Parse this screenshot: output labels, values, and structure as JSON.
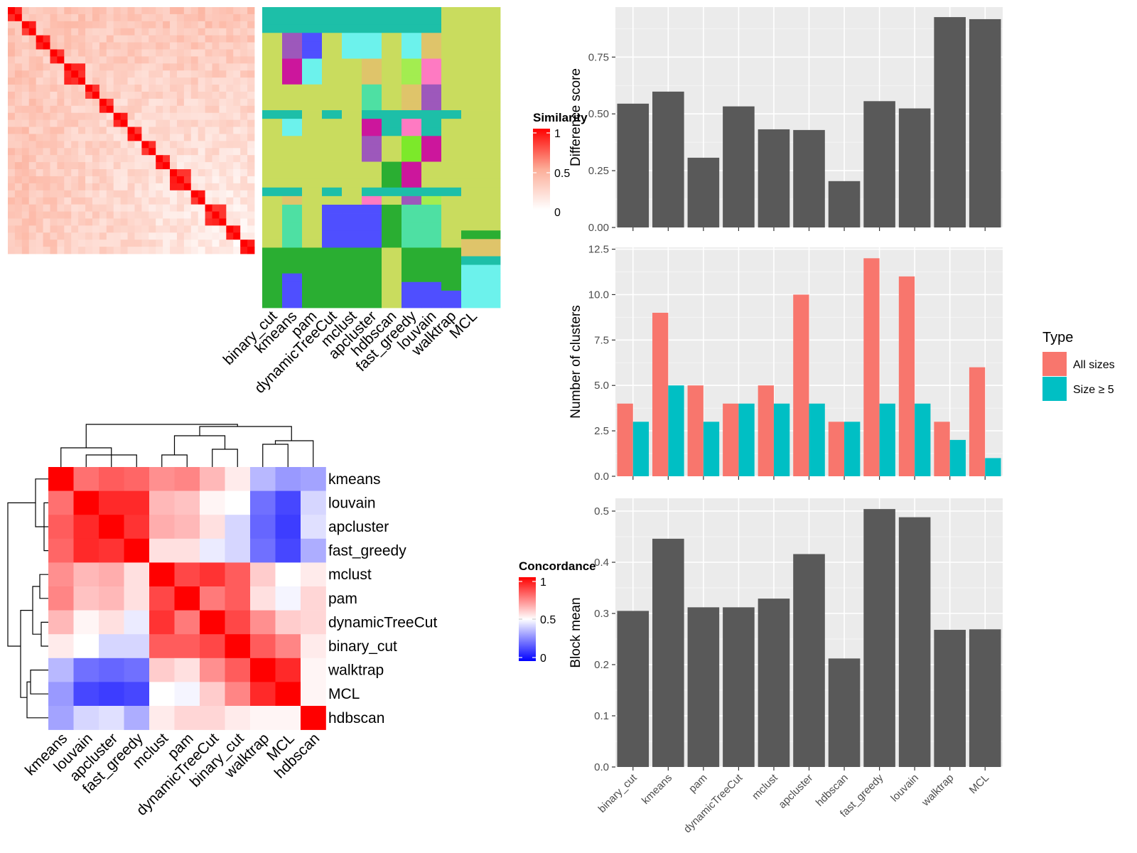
{
  "figure": {
    "heatmap_top": {
      "legend_title": "Similarity",
      "legend_ticks": [
        "1",
        "0.5",
        "0"
      ],
      "methods": [
        "binary_cut",
        "kmeans",
        "pam",
        "dynamicTreeCut",
        "mclust",
        "apcluster",
        "hdbscan",
        "fast_greedy",
        "louvain",
        "walktrap",
        "MCL"
      ]
    },
    "concordance": {
      "legend_title": "Concordance",
      "legend_ticks": [
        "1",
        "0.5",
        "0"
      ]
    }
  },
  "chart_data": [
    {
      "type": "heatmap",
      "name": "similarity",
      "title": "",
      "n": 35,
      "color_scale": {
        "0": "#ffffff",
        "0.5": "#fcad98",
        "1": "#ff0000"
      },
      "legend_title": "Similarity"
    },
    {
      "type": "heatmap",
      "name": "cluster-assignment",
      "title": "",
      "categories": [
        "binary_cut",
        "kmeans",
        "pam",
        "dynamicTreeCut",
        "mclust",
        "apcluster",
        "hdbscan",
        "fast_greedy",
        "louvain",
        "walktrap",
        "MCL"
      ]
    },
    {
      "type": "heatmap",
      "name": "concordance",
      "title": "",
      "legend_title": "Concordance",
      "rows": [
        "kmeans",
        "louvain",
        "apcluster",
        "fast_greedy",
        "mclust",
        "pam",
        "dynamicTreeCut",
        "binary_cut",
        "walktrap",
        "MCL",
        "hdbscan"
      ],
      "columns": [
        "kmeans",
        "louvain",
        "apcluster",
        "fast_greedy",
        "mclust",
        "pam",
        "dynamicTreeCut",
        "binary_cut",
        "walktrap",
        "MCL",
        "hdbscan"
      ],
      "values": [
        [
          1.0,
          0.78,
          0.82,
          0.8,
          0.72,
          0.74,
          0.64,
          0.54,
          0.36,
          0.3,
          0.32
        ],
        [
          0.78,
          1.0,
          0.92,
          0.92,
          0.64,
          0.62,
          0.52,
          0.5,
          0.22,
          0.14,
          0.42
        ],
        [
          0.82,
          0.92,
          1.0,
          0.9,
          0.66,
          0.64,
          0.56,
          0.42,
          0.2,
          0.12,
          0.44
        ],
        [
          0.8,
          0.92,
          0.9,
          1.0,
          0.56,
          0.56,
          0.46,
          0.42,
          0.22,
          0.14,
          0.34
        ],
        [
          0.72,
          0.64,
          0.66,
          0.56,
          1.0,
          0.86,
          0.9,
          0.82,
          0.6,
          0.5,
          0.54
        ],
        [
          0.74,
          0.62,
          0.64,
          0.56,
          0.86,
          1.0,
          0.76,
          0.82,
          0.56,
          0.48,
          0.58
        ],
        [
          0.64,
          0.52,
          0.56,
          0.46,
          0.9,
          0.76,
          1.0,
          0.86,
          0.72,
          0.6,
          0.58
        ],
        [
          0.54,
          0.5,
          0.42,
          0.42,
          0.82,
          0.82,
          0.86,
          1.0,
          0.82,
          0.74,
          0.54
        ],
        [
          0.36,
          0.22,
          0.2,
          0.22,
          0.6,
          0.56,
          0.72,
          0.82,
          1.0,
          0.92,
          0.52
        ],
        [
          0.3,
          0.14,
          0.12,
          0.14,
          0.5,
          0.48,
          0.6,
          0.74,
          0.92,
          1.0,
          0.52
        ],
        [
          0.32,
          0.42,
          0.44,
          0.34,
          0.54,
          0.58,
          0.58,
          0.54,
          0.52,
          0.52,
          1.0
        ]
      ]
    },
    {
      "type": "bar",
      "name": "difference-score",
      "title": "",
      "xlabel": "",
      "ylabel": "Difference score",
      "categories": [
        "binary_cut",
        "kmeans",
        "pam",
        "dynamicTreeCut",
        "mclust",
        "apcluster",
        "hdbscan",
        "fast_greedy",
        "louvain",
        "walktrap",
        "MCL"
      ],
      "values": [
        0.545,
        0.598,
        0.307,
        0.533,
        0.432,
        0.429,
        0.204,
        0.556,
        0.524,
        0.926,
        0.917
      ],
      "ylim": [
        0,
        0.97
      ],
      "yticks": [
        "0.00",
        "0.25",
        "0.50",
        "0.75"
      ],
      "color": "#595959",
      "grid": true
    },
    {
      "type": "bar",
      "name": "number-of-clusters",
      "title": "",
      "xlabel": "",
      "ylabel": "Number of clusters",
      "categories": [
        "binary_cut",
        "kmeans",
        "pam",
        "dynamicTreeCut",
        "mclust",
        "apcluster",
        "hdbscan",
        "fast_greedy",
        "louvain",
        "walktrap",
        "MCL"
      ],
      "series": [
        {
          "name": "All sizes",
          "color": "#f8766d",
          "values": [
            4,
            9,
            5,
            4,
            5,
            10,
            3,
            12,
            11,
            3,
            6
          ]
        },
        {
          "name": "Size ≥ 5",
          "color": "#00bfc4",
          "values": [
            3,
            5,
            3,
            4,
            4,
            4,
            3,
            4,
            4,
            2,
            1
          ]
        }
      ],
      "ylim": [
        0,
        12.6
      ],
      "yticks": [
        "0.0",
        "2.5",
        "5.0",
        "7.5",
        "10.0",
        "12.5"
      ],
      "legend_title": "Type",
      "legend_position": "right",
      "grid": true
    },
    {
      "type": "bar",
      "name": "block-mean",
      "title": "",
      "xlabel": "",
      "ylabel": "Block mean",
      "categories": [
        "binary_cut",
        "kmeans",
        "pam",
        "dynamicTreeCut",
        "mclust",
        "apcluster",
        "hdbscan",
        "fast_greedy",
        "louvain",
        "walktrap",
        "MCL"
      ],
      "values": [
        0.305,
        0.446,
        0.312,
        0.312,
        0.329,
        0.416,
        0.212,
        0.504,
        0.488,
        0.268,
        0.269
      ],
      "ylim": [
        0,
        0.525
      ],
      "yticks": [
        "0.0",
        "0.1",
        "0.2",
        "0.3",
        "0.4",
        "0.5"
      ],
      "color": "#595959",
      "grid": true
    }
  ]
}
